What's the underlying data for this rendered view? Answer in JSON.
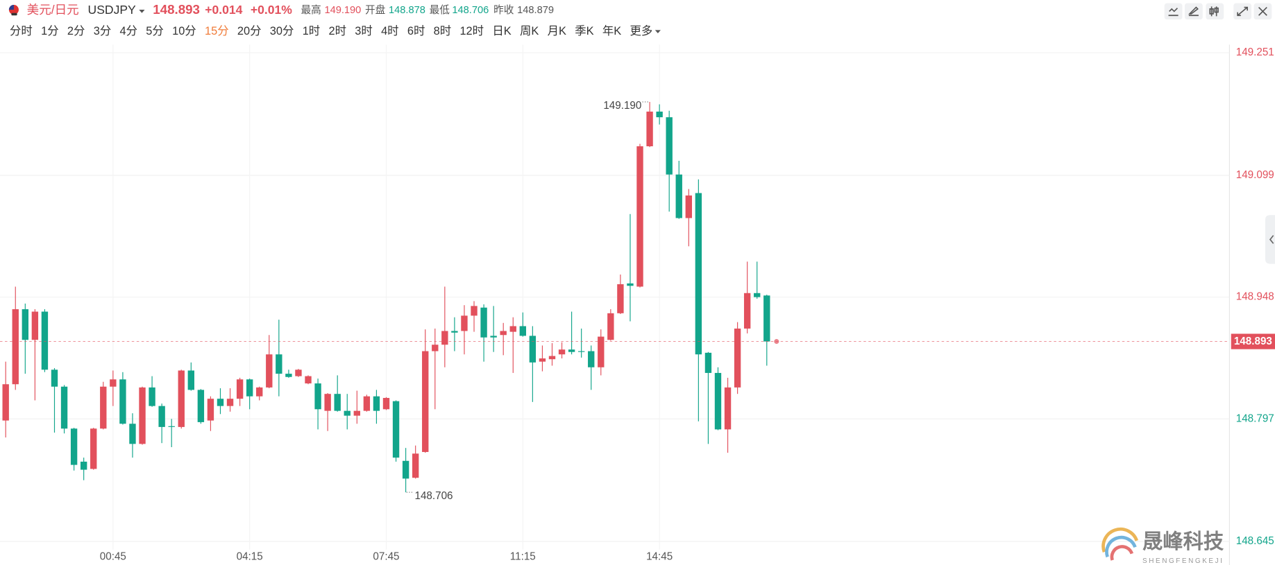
{
  "header": {
    "pair_name": "美元/日元",
    "symbol": "USDJPY",
    "price": "148.893",
    "change": "+0.014",
    "change_pct": "+0.01%",
    "stats": [
      {
        "label": "最高",
        "value": "149.190",
        "color": "#e2505c"
      },
      {
        "label": "开盘",
        "value": "148.878",
        "color": "#12a58b"
      },
      {
        "label": "最低",
        "value": "148.706",
        "color": "#12a58b"
      },
      {
        "label": "昨收",
        "value": "148.879",
        "color": "#555555"
      }
    ],
    "timeframes": [
      "分时",
      "1分",
      "2分",
      "3分",
      "4分",
      "5分",
      "10分",
      "15分",
      "20分",
      "30分",
      "1时",
      "2时",
      "3时",
      "4时",
      "6时",
      "8时",
      "12时",
      "日K",
      "周K",
      "月K",
      "季K",
      "年K",
      "更多"
    ],
    "active_timeframe": 7
  },
  "chart_data": {
    "type": "candlestick",
    "categories": [
      null,
      null,
      null,
      null,
      null,
      null,
      null,
      null,
      null,
      null,
      null,
      "00:45",
      null,
      null,
      null,
      null,
      null,
      null,
      null,
      null,
      null,
      null,
      null,
      null,
      null,
      "04:15",
      null,
      null,
      null,
      null,
      null,
      null,
      null,
      null,
      null,
      null,
      null,
      null,
      null,
      "07:45",
      null,
      null,
      null,
      null,
      null,
      null,
      null,
      null,
      null,
      null,
      null,
      null,
      null,
      "11:15",
      null,
      null,
      null,
      null,
      null,
      null,
      null,
      null,
      null,
      null,
      null,
      null,
      null,
      "14:45",
      null,
      null,
      null,
      null,
      null,
      null,
      null,
      null,
      null,
      null,
      null
    ],
    "open": [
      148.795,
      148.84,
      148.933,
      148.895,
      148.93,
      148.858,
      148.837,
      148.785,
      148.744,
      148.735,
      148.785,
      148.837,
      148.846,
      148.791,
      148.766,
      148.836,
      148.813,
      148.788,
      148.787,
      148.857,
      148.833,
      148.795,
      148.822,
      148.813,
      148.822,
      148.846,
      148.825,
      148.836,
      148.877,
      148.853,
      148.85,
      148.841,
      148.841,
      148.807,
      148.828,
      148.807,
      148.801,
      148.807,
      148.825,
      148.809,
      148.819,
      148.745,
      148.724,
      148.756,
      148.881,
      148.889,
      148.906,
      148.906,
      148.925,
      148.935,
      148.9,
      148.901,
      148.905,
      148.912,
      148.9,
      148.868,
      148.871,
      148.877,
      148.883,
      148.881,
      148.881,
      148.861,
      148.895,
      148.928,
      148.965,
      148.961,
      149.135,
      149.178,
      149.171,
      149.1,
      149.046,
      149.077,
      148.879,
      148.854,
      148.784,
      148.836,
      148.909,
      148.953,
      148.95
    ],
    "high": [
      148.868,
      148.961,
      148.94,
      148.933,
      148.933,
      148.86,
      148.839,
      148.786,
      148.749,
      148.786,
      148.843,
      148.857,
      148.855,
      148.804,
      148.837,
      148.85,
      148.816,
      148.797,
      148.858,
      148.867,
      148.834,
      148.825,
      148.835,
      148.835,
      148.848,
      148.847,
      148.837,
      148.901,
      148.92,
      148.858,
      148.859,
      148.851,
      148.847,
      148.829,
      148.851,
      148.828,
      148.832,
      148.827,
      148.833,
      148.824,
      148.82,
      148.761,
      148.764,
      148.908,
      148.909,
      148.961,
      148.923,
      148.938,
      148.943,
      148.939,
      148.937,
      148.916,
      148.923,
      148.929,
      148.912,
      148.888,
      148.891,
      148.892,
      148.93,
      148.909,
      148.888,
      148.908,
      148.933,
      148.976,
      149.051,
      149.138,
      149.19,
      149.187,
      149.179,
      149.117,
      149.082,
      149.094,
      148.88,
      148.861,
      148.848,
      148.917,
      148.992,
      148.992,
      148.951
    ],
    "low": [
      148.774,
      148.833,
      148.853,
      148.82,
      148.855,
      148.78,
      148.779,
      148.733,
      148.721,
      148.734,
      148.784,
      148.813,
      148.79,
      148.749,
      148.765,
      148.812,
      148.767,
      148.762,
      148.785,
      148.832,
      148.791,
      148.782,
      148.803,
      148.806,
      148.813,
      148.809,
      148.82,
      148.835,
      148.825,
      148.848,
      148.849,
      148.84,
      148.784,
      148.782,
      148.806,
      148.784,
      148.791,
      148.806,
      148.791,
      148.808,
      148.744,
      148.706,
      148.723,
      148.755,
      148.809,
      148.861,
      148.881,
      148.877,
      148.905,
      148.868,
      148.88,
      148.876,
      148.854,
      148.899,
      148.818,
      148.856,
      148.863,
      148.872,
      148.877,
      148.873,
      148.833,
      148.851,
      148.894,
      148.927,
      148.918,
      148.96,
      149.134,
      149.162,
      149.054,
      149.045,
      149.011,
      148.794,
      148.766,
      148.783,
      148.755,
      148.828,
      148.903,
      148.946,
      148.863
    ],
    "close": [
      148.84,
      148.933,
      148.895,
      148.93,
      148.858,
      148.837,
      148.785,
      148.74,
      148.734,
      148.785,
      148.837,
      148.846,
      148.791,
      148.766,
      148.836,
      148.813,
      148.787,
      148.787,
      148.857,
      148.833,
      148.793,
      148.822,
      148.813,
      148.822,
      148.846,
      148.825,
      148.836,
      148.877,
      148.853,
      148.849,
      148.858,
      148.85,
      148.809,
      148.828,
      148.807,
      148.801,
      148.807,
      148.825,
      148.807,
      148.823,
      148.749,
      148.723,
      148.754,
      148.881,
      148.889,
      148.906,
      148.904,
      148.925,
      148.937,
      148.898,
      148.898,
      148.906,
      148.912,
      148.9,
      148.867,
      148.872,
      148.875,
      148.883,
      148.88,
      148.88,
      148.861,
      148.899,
      148.928,
      148.964,
      148.962,
      149.135,
      149.178,
      149.171,
      149.1,
      149.046,
      149.074,
      148.877,
      148.854,
      148.784,
      148.836,
      148.909,
      148.953,
      148.948,
      148.893
    ],
    "up_color": "#e2505c",
    "down_color": "#12a58b",
    "ylim": [
      148.635,
      149.261
    ],
    "yticks": [
      149.251,
      149.099,
      148.948,
      148.797,
      148.645
    ],
    "grid": true,
    "high_label": {
      "value": 149.19,
      "label": "149.190"
    },
    "low_label": {
      "value": 148.706,
      "label": "148.706"
    },
    "current_price": 148.893
  },
  "watermark": {
    "name": "晟峰科技",
    "pinyin": "SHENGFENGKEJI"
  }
}
